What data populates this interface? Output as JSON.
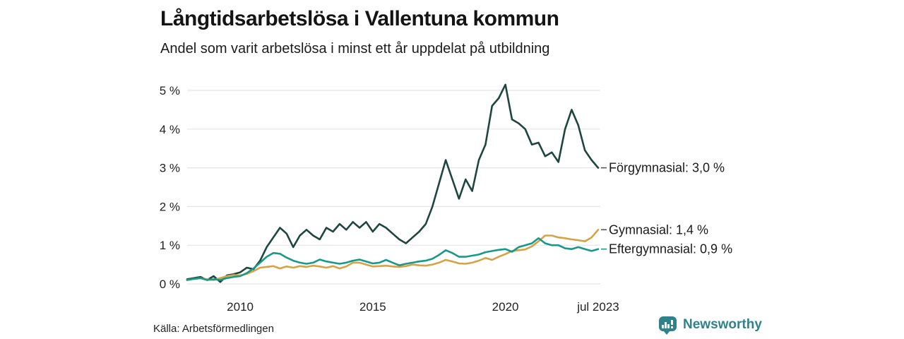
{
  "header": {
    "title": "Långtidsarbetslösa i Vallentuna kommun",
    "subtitle": "Andel som varit arbetslösa i minst ett år uppdelat på utbildning"
  },
  "chart_data": {
    "type": "line",
    "title": "Långtidsarbetslösa i Vallentuna kommun",
    "subtitle": "Andel som varit arbetslösa i minst ett år uppdelat på utbildning",
    "xlabel": "",
    "ylabel": "",
    "grid": "horizontal",
    "grid_color": "#e5e5e8",
    "axis_text_color": "#222222",
    "legend_position": "right-of-line-ends",
    "legend_leader_default": "#555555",
    "xlim": [
      2008,
      2023.58
    ],
    "ylim": [
      0,
      5
    ],
    "y_ticks": [
      {
        "value": 0,
        "label": "0 %"
      },
      {
        "value": 1,
        "label": "1 %"
      },
      {
        "value": 2,
        "label": "2 %"
      },
      {
        "value": 3,
        "label": "3 %"
      },
      {
        "value": 4,
        "label": "4 %"
      },
      {
        "value": 5,
        "label": "5 %"
      }
    ],
    "x_ticks": [
      {
        "value": 2010,
        "label": "2010"
      },
      {
        "value": 2015,
        "label": "2015"
      },
      {
        "value": 2020,
        "label": "2020"
      },
      {
        "value": 2023.5,
        "label": "jul 2023"
      }
    ],
    "x": [
      2008.0,
      2008.25,
      2008.5,
      2008.75,
      2009.0,
      2009.25,
      2009.5,
      2009.75,
      2010.0,
      2010.25,
      2010.5,
      2010.75,
      2011.0,
      2011.25,
      2011.5,
      2011.75,
      2012.0,
      2012.25,
      2012.5,
      2012.75,
      2013.0,
      2013.25,
      2013.5,
      2013.75,
      2014.0,
      2014.25,
      2014.5,
      2014.75,
      2015.0,
      2015.25,
      2015.5,
      2015.75,
      2016.0,
      2016.25,
      2016.5,
      2016.75,
      2017.0,
      2017.25,
      2017.5,
      2017.75,
      2018.0,
      2018.25,
      2018.5,
      2018.75,
      2019.0,
      2019.25,
      2019.5,
      2019.75,
      2020.0,
      2020.25,
      2020.5,
      2020.75,
      2021.0,
      2021.25,
      2021.5,
      2021.75,
      2022.0,
      2022.25,
      2022.5,
      2022.75,
      2023.0,
      2023.25,
      2023.5
    ],
    "series": [
      {
        "name": "Förgymnasial",
        "end_label": "Förgymnasial: 3,0 %",
        "end_value_label": "3,0 %",
        "color": "#1e463e",
        "leader_color": "#555555",
        "values": [
          0.12,
          0.15,
          0.18,
          0.1,
          0.2,
          0.05,
          0.22,
          0.25,
          0.3,
          0.42,
          0.38,
          0.6,
          0.95,
          1.2,
          1.45,
          1.3,
          0.95,
          1.25,
          1.4,
          1.25,
          1.15,
          1.45,
          1.35,
          1.55,
          1.4,
          1.6,
          1.45,
          1.6,
          1.35,
          1.55,
          1.45,
          1.3,
          1.15,
          1.05,
          1.2,
          1.35,
          1.55,
          2.0,
          2.6,
          3.2,
          2.7,
          2.2,
          2.7,
          2.4,
          3.2,
          3.6,
          4.6,
          4.8,
          5.15,
          4.25,
          4.15,
          4.0,
          3.6,
          3.65,
          3.3,
          3.4,
          3.15,
          4.0,
          4.5,
          4.1,
          3.45,
          3.2,
          3.0
        ]
      },
      {
        "name": "Gymnasial",
        "end_label": "Gymnasial: 1,4 %",
        "end_value_label": "1,4 %",
        "color": "#d5a345",
        "leader_color": "#555555",
        "values": [
          0.1,
          0.13,
          0.15,
          0.12,
          0.1,
          0.15,
          0.2,
          0.23,
          0.22,
          0.26,
          0.33,
          0.42,
          0.44,
          0.46,
          0.4,
          0.45,
          0.42,
          0.46,
          0.44,
          0.47,
          0.45,
          0.42,
          0.46,
          0.4,
          0.45,
          0.55,
          0.55,
          0.5,
          0.45,
          0.46,
          0.47,
          0.45,
          0.44,
          0.46,
          0.5,
          0.48,
          0.47,
          0.5,
          0.55,
          0.62,
          0.58,
          0.53,
          0.52,
          0.55,
          0.6,
          0.67,
          0.62,
          0.7,
          0.77,
          0.85,
          0.87,
          0.89,
          0.97,
          1.1,
          1.25,
          1.25,
          1.2,
          1.18,
          1.15,
          1.13,
          1.1,
          1.2,
          1.4
        ]
      },
      {
        "name": "Eftergymnasial",
        "end_label": "Eftergymnasial: 0,9 %",
        "end_value_label": "0,9 %",
        "color": "#17998a",
        "leader_color": "#17998a",
        "values": [
          0.1,
          0.13,
          0.15,
          0.1,
          0.12,
          0.1,
          0.15,
          0.18,
          0.2,
          0.28,
          0.4,
          0.55,
          0.7,
          0.8,
          0.78,
          0.68,
          0.6,
          0.55,
          0.52,
          0.55,
          0.63,
          0.58,
          0.55,
          0.52,
          0.55,
          0.6,
          0.63,
          0.58,
          0.53,
          0.55,
          0.62,
          0.55,
          0.48,
          0.52,
          0.55,
          0.58,
          0.6,
          0.65,
          0.75,
          0.87,
          0.8,
          0.7,
          0.7,
          0.73,
          0.76,
          0.82,
          0.85,
          0.88,
          0.9,
          0.83,
          0.95,
          1.0,
          1.05,
          1.18,
          1.05,
          1.0,
          1.0,
          0.92,
          0.9,
          0.95,
          0.9,
          0.85,
          0.9
        ]
      }
    ]
  },
  "footer": {
    "source": "Källa: Arbetsförmedlingen",
    "brand": "Newsworthy",
    "brand_color": "#2e838a",
    "brand_icon": "bar-chart-speech-bubble-icon"
  }
}
